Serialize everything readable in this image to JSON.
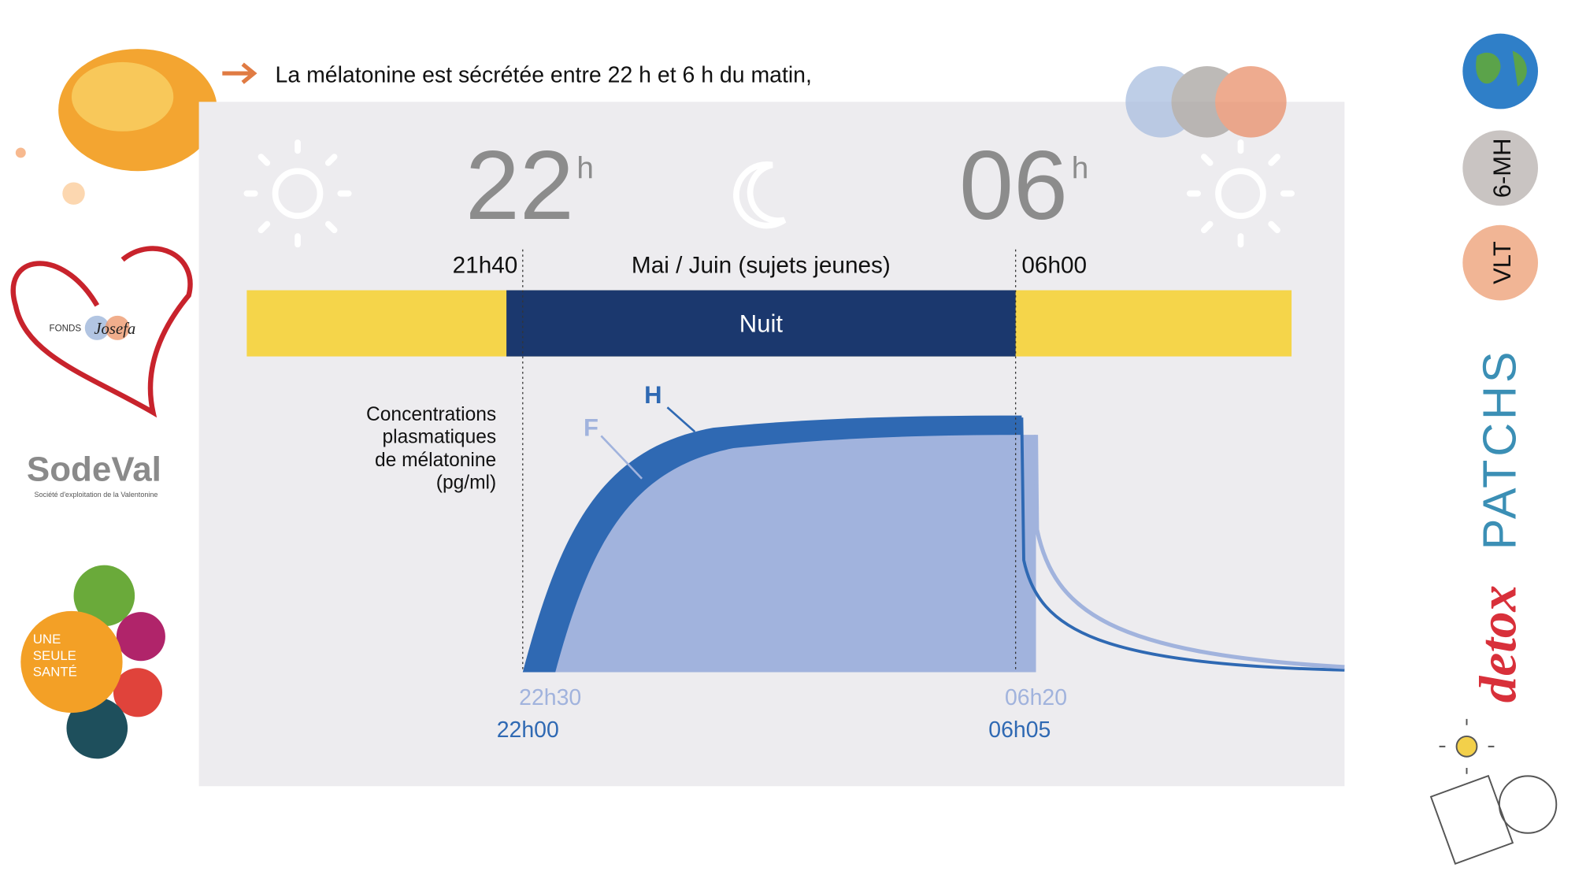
{
  "header": {
    "text": "La mélatonine est sécrétée entre 22 h et 6 h du matin,"
  },
  "clock": {
    "start_hour": "22",
    "start_unit": "h",
    "end_hour": "06",
    "end_unit": "h"
  },
  "period": {
    "start": "21h40",
    "label": "Mai / Juin (sujets jeunes)",
    "end": "06h00",
    "night": "Nuit"
  },
  "curves": {
    "male": "H",
    "female": "F"
  },
  "y_label": [
    "Concentrations",
    "plasmatiques",
    "de mélatonine",
    "(pg/ml)"
  ],
  "times": {
    "female_start": "22h30",
    "male_start": "22h00",
    "female_end": "06h20",
    "male_end": "06h05"
  },
  "sidebar": {
    "fund": "FONDS",
    "fund_name": "Josefa",
    "sodeval": "SodeVal",
    "sodeval_sub": "Société d'exploitation de la Valentonine",
    "one_health": [
      "UNE",
      "SEULE",
      "SANTÉ"
    ],
    "badge_1": "6-MH",
    "badge_2": "VLT",
    "brand_1": "detox",
    "brand_2": "PATCHS"
  }
}
